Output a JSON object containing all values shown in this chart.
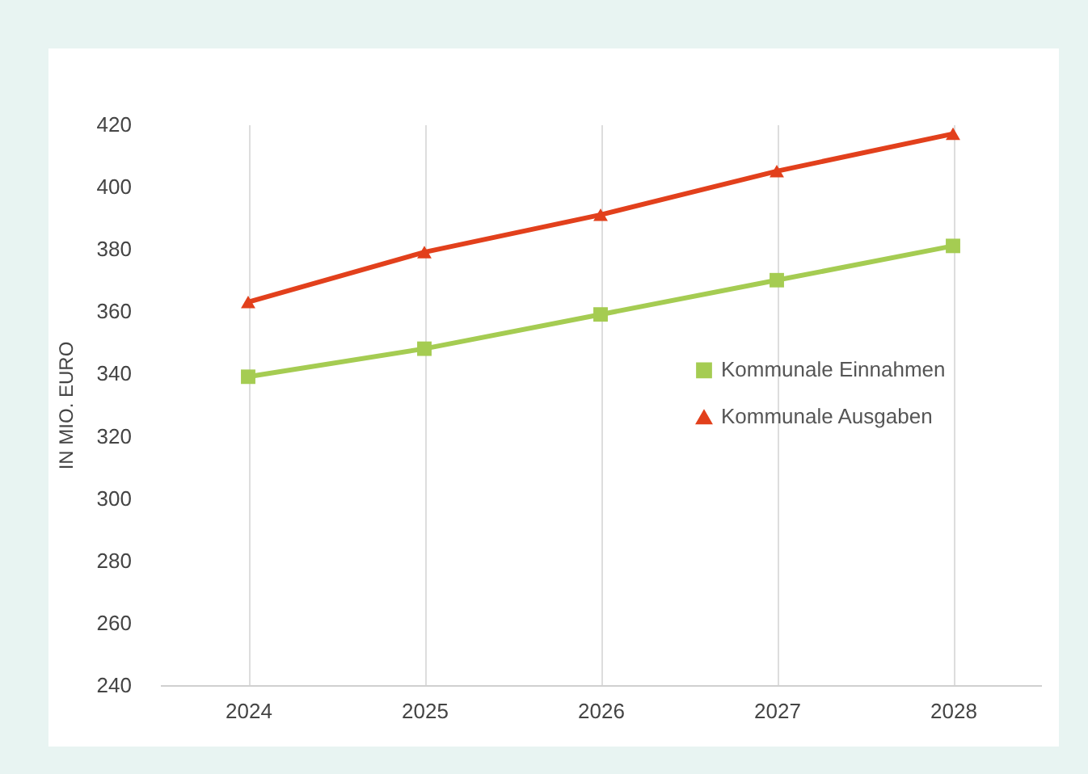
{
  "chart_data": {
    "type": "line",
    "ylabel": "IN MIO. EURO",
    "categories": [
      "2024",
      "2025",
      "2026",
      "2027",
      "2028"
    ],
    "series": [
      {
        "name": "Kommunale Einnahmen",
        "color": "#a5cc52",
        "marker": "square",
        "values": [
          339,
          348,
          359,
          370,
          381
        ]
      },
      {
        "name": "Kommunale Ausgaben",
        "color": "#e2401c",
        "marker": "triangle",
        "values": [
          363,
          379,
          391,
          405,
          417
        ]
      }
    ],
    "ylim": [
      240,
      420
    ],
    "yticks": [
      240,
      260,
      280,
      300,
      320,
      340,
      360,
      380,
      400,
      420
    ],
    "grid": "x",
    "legend": "right"
  }
}
